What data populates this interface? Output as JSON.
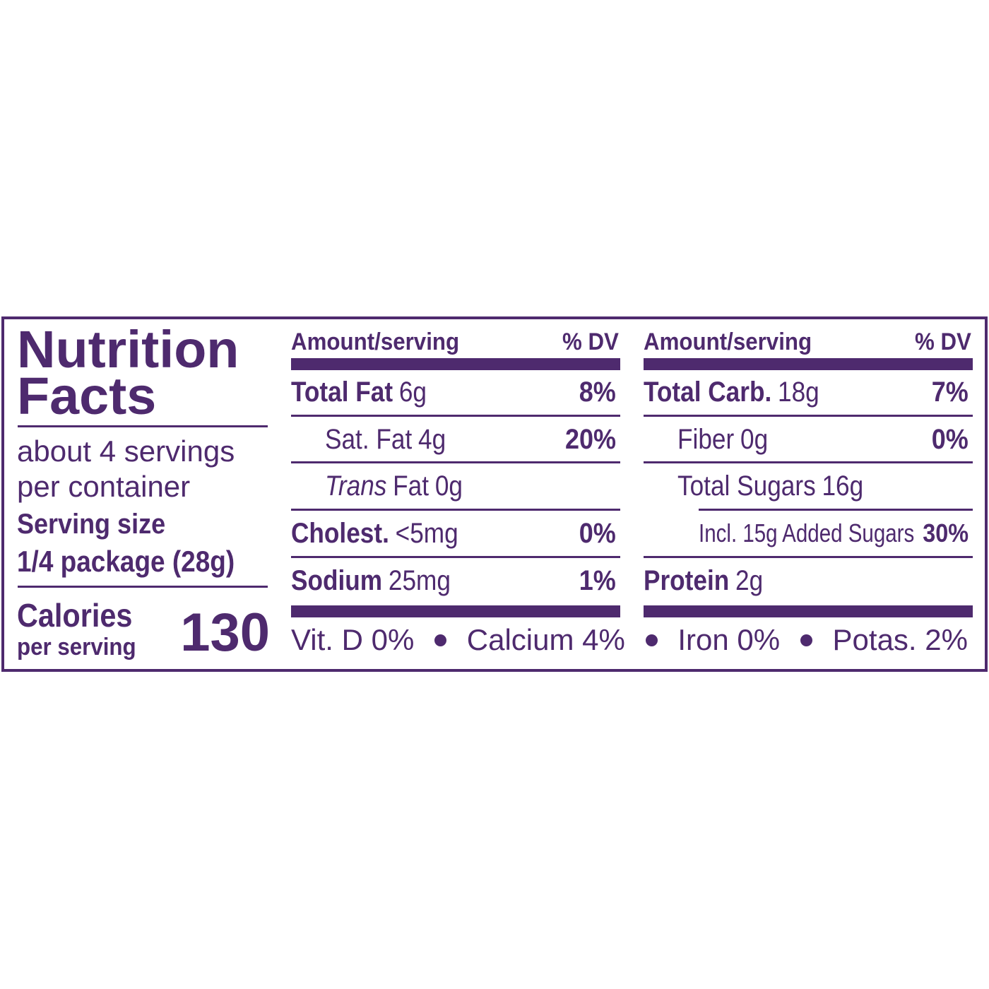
{
  "label": {
    "title": [
      "Nutrition",
      "Facts"
    ],
    "servings_per_container": "about 4 servings per container",
    "serving_size_label": "Serving size",
    "serving_size": "1/4 package (28g)",
    "calories_label": "Calories",
    "calories_sublabel": "per serving",
    "calories": 130,
    "columns": [
      {
        "header": "Amount/serving",
        "dv_header": "% DV",
        "rows": [
          {
            "name": "Total Fat",
            "amount": "6g",
            "dv": "8%",
            "bold": true,
            "indent": 0
          },
          {
            "name": "Sat. Fat",
            "amount": "4g",
            "dv": "20%",
            "bold": false,
            "indent": 1
          },
          {
            "prefix": "Trans",
            "name": "Fat",
            "amount": "0g",
            "bold": false,
            "indent": 1
          },
          {
            "name": "Cholest.",
            "amount": "<5mg",
            "dv": "0%",
            "bold": true,
            "indent": 0
          },
          {
            "name": "Sodium",
            "amount": "25mg",
            "dv": "1%",
            "bold": true,
            "indent": 0
          }
        ]
      },
      {
        "header": "Amount/serving",
        "dv_header": "% DV",
        "rows": [
          {
            "name": "Total Carb.",
            "amount": "18g",
            "dv": "7%",
            "bold": true,
            "indent": 0
          },
          {
            "name": "Fiber",
            "amount": "0g",
            "dv": "0%",
            "bold": false,
            "indent": 1
          },
          {
            "name": "Total Sugars",
            "amount": "16g",
            "bold": false,
            "indent": 1
          },
          {
            "name": "Incl. 15g Added Sugars",
            "dv": "30%",
            "bold": false,
            "indent": 2
          },
          {
            "name": "Protein",
            "amount": "2g",
            "bold": true,
            "indent": 0
          }
        ]
      }
    ],
    "vitamins": [
      "Vit. D 0%",
      "Calcium 4%",
      "Iron 0%",
      "Potas. 2%"
    ]
  }
}
